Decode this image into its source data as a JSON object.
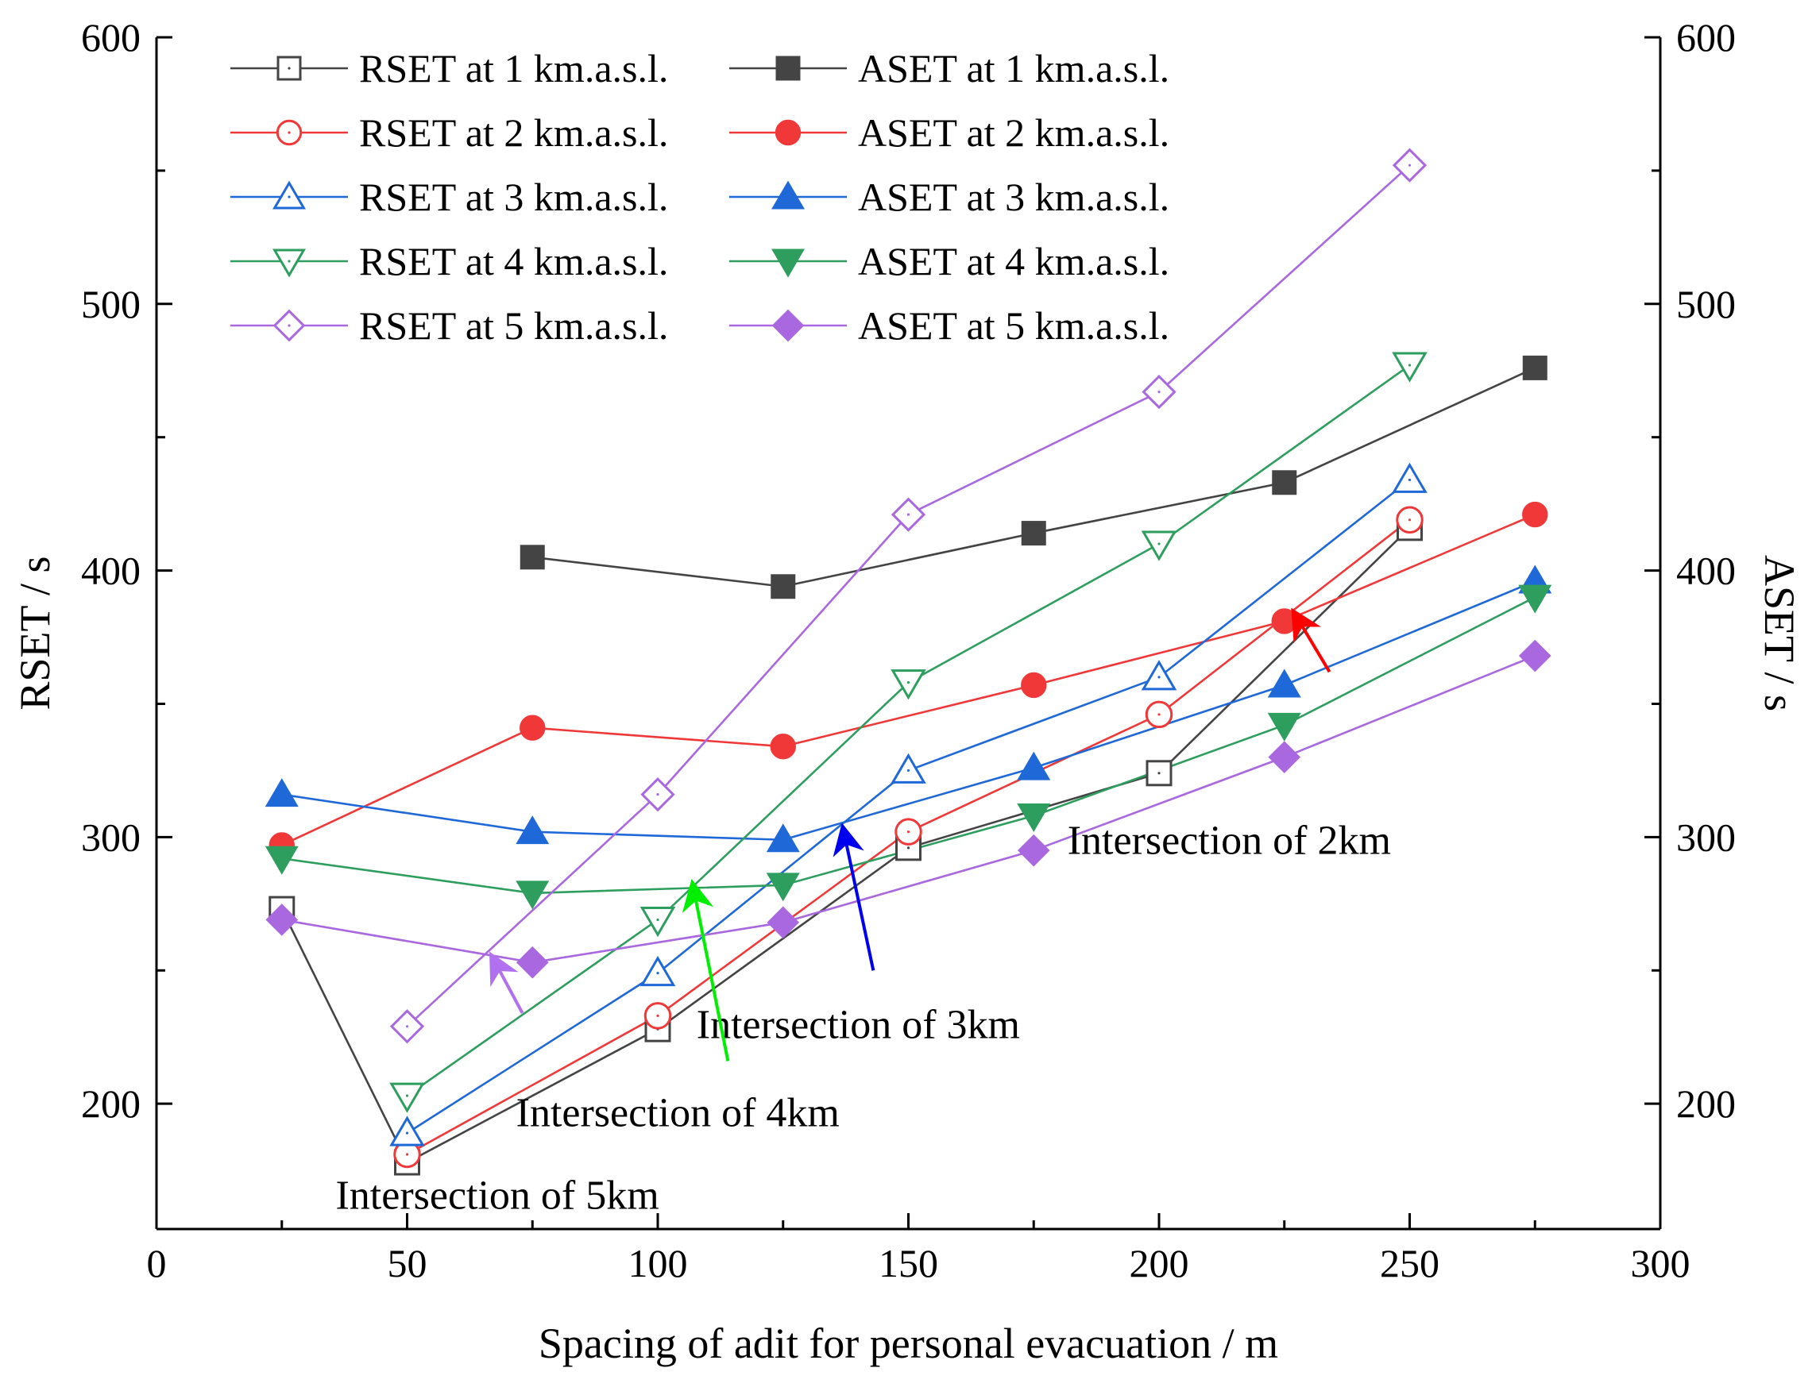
{
  "chart_data": {
    "type": "line",
    "title": "",
    "xlabel": "Spacing of adit for personal evacuation / m",
    "ylabel_left": "RSET / s",
    "ylabel_right": "ASET / s",
    "xlim": [
      0,
      300
    ],
    "ylim": [
      153,
      600
    ],
    "x_ticks": [
      0,
      50,
      100,
      150,
      200,
      250,
      300
    ],
    "y_ticks": [
      200,
      300,
      400,
      500,
      600
    ],
    "grid": false,
    "legend_position": "top-left",
    "series": [
      {
        "name": "RSET at 1 km.a.s.l.",
        "color": "#444444",
        "marker": "square",
        "filled": false,
        "x": [
          25,
          50,
          100,
          150,
          200,
          250
        ],
        "values": [
          273,
          178,
          228,
          296,
          324,
          416
        ]
      },
      {
        "name": "ASET at 1 km.a.s.l.",
        "color": "#444444",
        "marker": "square",
        "filled": true,
        "x": [
          75,
          125,
          175,
          225,
          275
        ],
        "values": [
          405,
          394,
          414,
          433,
          476
        ]
      },
      {
        "name": "RSET at 2 km.a.s.l.",
        "color": "#f03838",
        "marker": "circle",
        "filled": false,
        "x": [
          50,
          100,
          150,
          200,
          250
        ],
        "values": [
          181,
          233,
          302,
          346,
          419
        ]
      },
      {
        "name": "ASET at 2 km.a.s.l.",
        "color": "#f03838",
        "marker": "circle",
        "filled": true,
        "x": [
          25,
          75,
          125,
          175,
          225,
          275
        ],
        "values": [
          297,
          341,
          334,
          357,
          381,
          421
        ]
      },
      {
        "name": "RSET at 3 km.a.s.l.",
        "color": "#1f68d8",
        "marker": "triangle-up",
        "filled": false,
        "x": [
          50,
          100,
          150,
          200,
          250
        ],
        "values": [
          189,
          249,
          325,
          360,
          434
        ]
      },
      {
        "name": "ASET at 3 km.a.s.l.",
        "color": "#1f68d8",
        "marker": "triangle-up",
        "filled": true,
        "x": [
          25,
          75,
          125,
          175,
          225,
          275
        ],
        "values": [
          316,
          302,
          299,
          326,
          357,
          396
        ]
      },
      {
        "name": "RSET at 4 km.a.s.l.",
        "color": "#2e9e5e",
        "marker": "triangle-down",
        "filled": false,
        "x": [
          50,
          100,
          150,
          200,
          250
        ],
        "values": [
          203,
          269,
          358,
          410,
          477
        ]
      },
      {
        "name": "ASET at 4 km.a.s.l.",
        "color": "#2e9e5e",
        "marker": "triangle-down",
        "filled": true,
        "x": [
          25,
          75,
          125,
          175,
          225,
          275
        ],
        "values": [
          292,
          279,
          282,
          308,
          342,
          390
        ]
      },
      {
        "name": "RSET at 5 km.a.s.l.",
        "color": "#a968e0",
        "marker": "diamond",
        "filled": false,
        "x": [
          50,
          100,
          150,
          200,
          250
        ],
        "values": [
          229,
          316,
          421,
          467,
          552
        ]
      },
      {
        "name": "ASET at 5 km.a.s.l.",
        "color": "#a968e0",
        "marker": "diamond",
        "filled": true,
        "x": [
          25,
          75,
          125,
          175,
          225,
          275
        ],
        "values": [
          269,
          253,
          268,
          295,
          330,
          368
        ]
      }
    ],
    "annotations": [
      {
        "text": "Intersection of 2km",
        "color": "#ff0000",
        "arrow_from": [
          234,
          362
        ],
        "arrow_to": [
          227,
          384
        ],
        "label_at": [
          214,
          299
        ]
      },
      {
        "text": "Intersection of 3km",
        "color": "#0000ee",
        "arrow_from": [
          143,
          250
        ],
        "arrow_to": [
          137,
          303
        ],
        "label_at": [
          140,
          230
        ]
      },
      {
        "text": "Intersection of 4km",
        "color": "#00ee00",
        "arrow_from": [
          114,
          216
        ],
        "arrow_to": [
          107,
          282
        ],
        "label_at": [
          104,
          197
        ]
      },
      {
        "text": "Intersection of 5km",
        "color": "#b070f0",
        "arrow_from": [
          73,
          234
        ],
        "arrow_to": [
          67,
          255
        ],
        "label_at": [
          68,
          166
        ]
      }
    ]
  }
}
